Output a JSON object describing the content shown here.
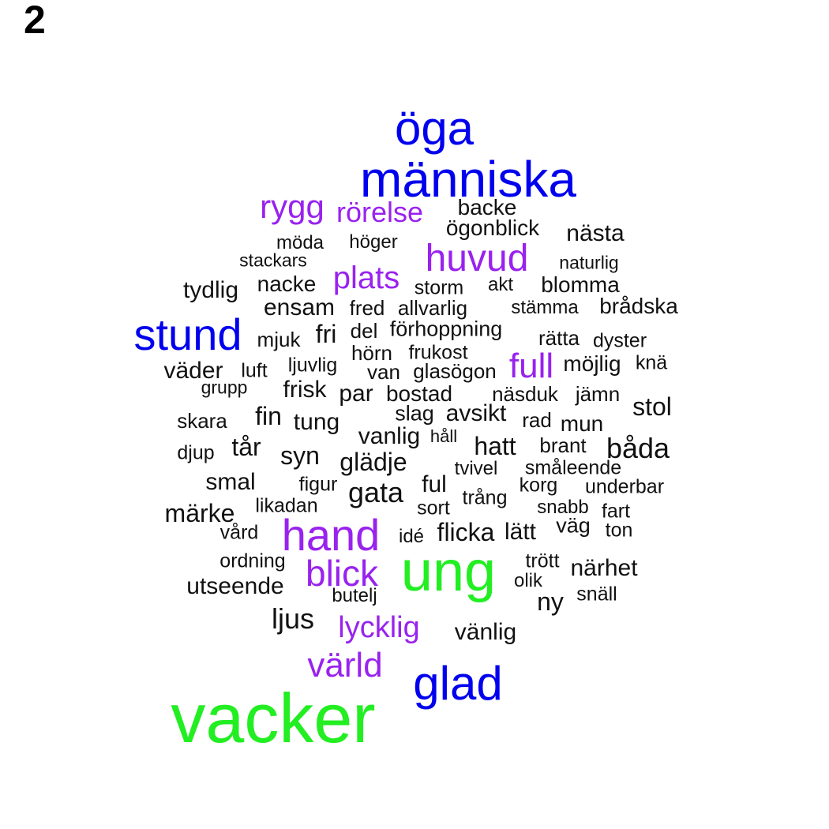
{
  "panel_label": "2",
  "colors": {
    "green": "#22ee22",
    "blue": "#0000ee",
    "purple": "#9922ee",
    "black": "#111111"
  },
  "words": [
    {
      "text": "öga",
      "color": "blue"
    },
    {
      "text": "människa",
      "color": "blue"
    },
    {
      "text": "rygg",
      "color": "purple"
    },
    {
      "text": "rörelse",
      "color": "purple"
    },
    {
      "text": "backe",
      "color": "black"
    },
    {
      "text": "ögonblick",
      "color": "black"
    },
    {
      "text": "nästa",
      "color": "black"
    },
    {
      "text": "möda",
      "color": "black"
    },
    {
      "text": "höger",
      "color": "black"
    },
    {
      "text": "stackars",
      "color": "black"
    },
    {
      "text": "huvud",
      "color": "purple"
    },
    {
      "text": "naturlig",
      "color": "black"
    },
    {
      "text": "tydlig",
      "color": "black"
    },
    {
      "text": "nacke",
      "color": "black"
    },
    {
      "text": "plats",
      "color": "purple"
    },
    {
      "text": "storm",
      "color": "black"
    },
    {
      "text": "akt",
      "color": "black"
    },
    {
      "text": "blomma",
      "color": "black"
    },
    {
      "text": "ensam",
      "color": "black"
    },
    {
      "text": "fred",
      "color": "black"
    },
    {
      "text": "allvarlig",
      "color": "black"
    },
    {
      "text": "stämma",
      "color": "black"
    },
    {
      "text": "brådska",
      "color": "black"
    },
    {
      "text": "stund",
      "color": "blue"
    },
    {
      "text": "mjuk",
      "color": "black"
    },
    {
      "text": "fri",
      "color": "black"
    },
    {
      "text": "del",
      "color": "black"
    },
    {
      "text": "förhoppning",
      "color": "black"
    },
    {
      "text": "rätta",
      "color": "black"
    },
    {
      "text": "dyster",
      "color": "black"
    },
    {
      "text": "hörn",
      "color": "black"
    },
    {
      "text": "frukost",
      "color": "black"
    },
    {
      "text": "full",
      "color": "purple"
    },
    {
      "text": "möjlig",
      "color": "black"
    },
    {
      "text": "knä",
      "color": "black"
    },
    {
      "text": "väder",
      "color": "black"
    },
    {
      "text": "luft",
      "color": "black"
    },
    {
      "text": "ljuvlig",
      "color": "black"
    },
    {
      "text": "van",
      "color": "black"
    },
    {
      "text": "glasögon",
      "color": "black"
    },
    {
      "text": "grupp",
      "color": "black"
    },
    {
      "text": "frisk",
      "color": "black"
    },
    {
      "text": "par",
      "color": "black"
    },
    {
      "text": "bostad",
      "color": "black"
    },
    {
      "text": "näsduk",
      "color": "black"
    },
    {
      "text": "jämn",
      "color": "black"
    },
    {
      "text": "stol",
      "color": "black"
    },
    {
      "text": "skara",
      "color": "black"
    },
    {
      "text": "fin",
      "color": "black"
    },
    {
      "text": "tung",
      "color": "black"
    },
    {
      "text": "slag",
      "color": "black"
    },
    {
      "text": "avsikt",
      "color": "black"
    },
    {
      "text": "rad",
      "color": "black"
    },
    {
      "text": "mun",
      "color": "black"
    },
    {
      "text": "vanlig",
      "color": "black"
    },
    {
      "text": "håll",
      "color": "black"
    },
    {
      "text": "hatt",
      "color": "black"
    },
    {
      "text": "brant",
      "color": "black"
    },
    {
      "text": "båda",
      "color": "black"
    },
    {
      "text": "djup",
      "color": "black"
    },
    {
      "text": "tår",
      "color": "black"
    },
    {
      "text": "syn",
      "color": "black"
    },
    {
      "text": "glädje",
      "color": "black"
    },
    {
      "text": "tvivel",
      "color": "black"
    },
    {
      "text": "småleende",
      "color": "black"
    },
    {
      "text": "smal",
      "color": "black"
    },
    {
      "text": "figur",
      "color": "black"
    },
    {
      "text": "gata",
      "color": "black"
    },
    {
      "text": "ful",
      "color": "black"
    },
    {
      "text": "korg",
      "color": "black"
    },
    {
      "text": "underbar",
      "color": "black"
    },
    {
      "text": "likadan",
      "color": "black"
    },
    {
      "text": "sort",
      "color": "black"
    },
    {
      "text": "trång",
      "color": "black"
    },
    {
      "text": "snabb",
      "color": "black"
    },
    {
      "text": "fart",
      "color": "black"
    },
    {
      "text": "märke",
      "color": "black"
    },
    {
      "text": "hand",
      "color": "purple"
    },
    {
      "text": "väg",
      "color": "black"
    },
    {
      "text": "ton",
      "color": "black"
    },
    {
      "text": "vård",
      "color": "black"
    },
    {
      "text": "idé",
      "color": "black"
    },
    {
      "text": "flicka",
      "color": "black"
    },
    {
      "text": "lätt",
      "color": "black"
    },
    {
      "text": "ordning",
      "color": "black"
    },
    {
      "text": "ung",
      "color": "green"
    },
    {
      "text": "trött",
      "color": "black"
    },
    {
      "text": "närhet",
      "color": "black"
    },
    {
      "text": "blick",
      "color": "purple"
    },
    {
      "text": "olik",
      "color": "black"
    },
    {
      "text": "utseende",
      "color": "black"
    },
    {
      "text": "butelj",
      "color": "black"
    },
    {
      "text": "ny",
      "color": "black"
    },
    {
      "text": "snäll",
      "color": "black"
    },
    {
      "text": "ljus",
      "color": "black"
    },
    {
      "text": "lycklig",
      "color": "purple"
    },
    {
      "text": "vänlig",
      "color": "black"
    },
    {
      "text": "värld",
      "color": "purple"
    },
    {
      "text": "glad",
      "color": "blue"
    },
    {
      "text": "vacker",
      "color": "green"
    }
  ]
}
